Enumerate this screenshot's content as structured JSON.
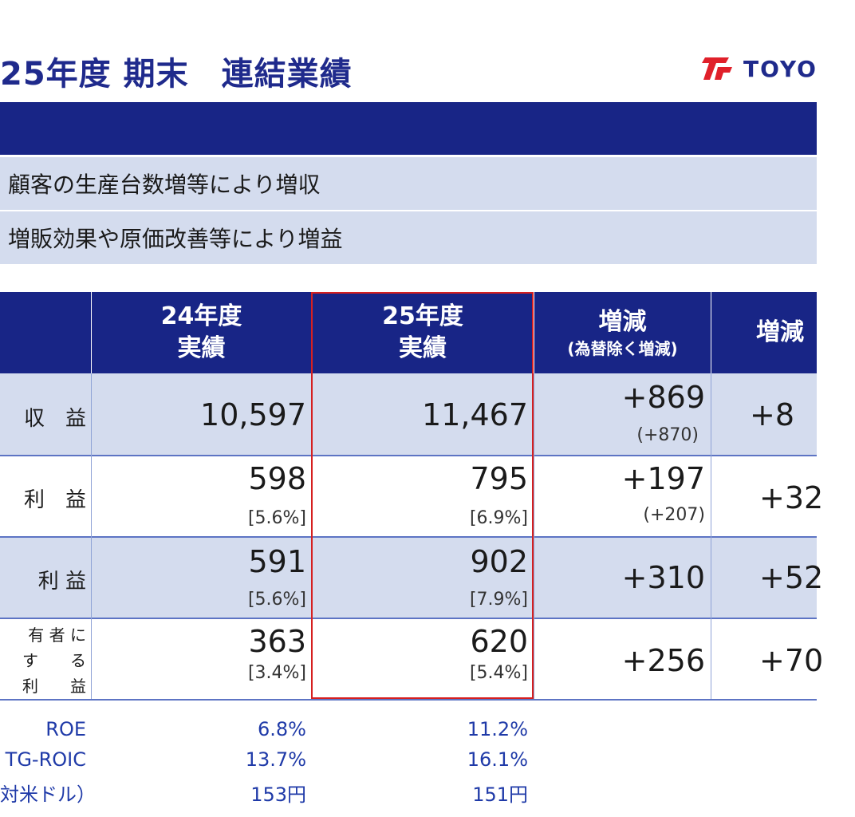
{
  "header": {
    "title": "25年度 期末　連結業績",
    "logo_text": "TOYO"
  },
  "summary": [
    "顧客の生産台数増等により増収",
    "増販効果や原価改善等により増益"
  ],
  "table": {
    "columns": {
      "fy24": {
        "line1": "24年度",
        "line2": "実績"
      },
      "fy25": {
        "line1": "25年度",
        "line2": "実績"
      },
      "diff": {
        "line1": "増減",
        "line2": "(為替除く増減)"
      },
      "diff2": {
        "line1": "増減"
      }
    },
    "rows": [
      {
        "label": "収　益",
        "fy24": "10,597",
        "fy25": "11,467",
        "diff": "+869",
        "diff_sub": "(+870)",
        "diff2": "+8"
      },
      {
        "label": "利　益",
        "fy24": "598",
        "fy24_sub": "[5.6%]",
        "fy25": "795",
        "fy25_sub": "[6.9%]",
        "diff": "+197",
        "diff_sub": "(+207)",
        "diff2": "+32"
      },
      {
        "label": "利 益",
        "fy24": "591",
        "fy24_sub": "[5.6%]",
        "fy25": "902",
        "fy25_sub": "[7.9%]",
        "diff": "+310",
        "diff2": "+52"
      },
      {
        "label_lines": [
          "有 者 に",
          "す　　る",
          "利　　益"
        ],
        "fy24": "363",
        "fy24_sub": "[3.4%]",
        "fy25": "620",
        "fy25_sub": "[5.4%]",
        "diff": "+256",
        "diff2": "+70"
      }
    ]
  },
  "kpis": [
    {
      "label": "ROE",
      "fy24": "6.8%",
      "fy25": "11.2%"
    },
    {
      "label": "TG-ROIC",
      "fy24": "13.7%",
      "fy25": "16.1%"
    },
    {
      "label": "対米ドル）",
      "fy24": "153円",
      "fy25": "151円"
    }
  ],
  "colors": {
    "navy": "#182586",
    "light_blue": "#d4dcee",
    "highlight": "#d62020"
  }
}
